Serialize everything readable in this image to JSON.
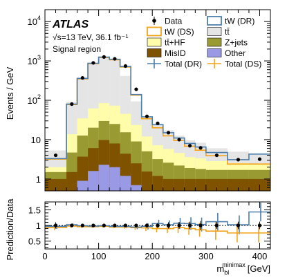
{
  "chart_data": [
    {
      "type": "bar",
      "ylabel": "Events / GeV",
      "info": {
        "experiment": "ATLAS",
        "energy_line": "√s=13 TeV, 36.1 fb⁻¹",
        "region": "Signal region"
      },
      "y_scale": "log",
      "ylim": [
        0.5,
        20000
      ],
      "xlim": [
        0,
        420
      ],
      "x_tick_labels": [
        "0",
        "100",
        "200",
        "300",
        "400"
      ],
      "y_tick_labels": [
        {
          "base": "1",
          "exp": ""
        },
        {
          "base": "10",
          "exp": ""
        },
        {
          "base": "10",
          "exp": "2"
        },
        {
          "base": "10",
          "exp": "3"
        },
        {
          "base": "10",
          "exp": "4"
        }
      ],
      "bin_edges": [
        0,
        40,
        60,
        80,
        100,
        120,
        140,
        160,
        180,
        200,
        220,
        240,
        260,
        280,
        300,
        340,
        380,
        420
      ],
      "stack": [
        {
          "name": "Other",
          "color": "#9999e6",
          "values": [
            0.5,
            0.5,
            0.9,
            1.6,
            2.3,
            2.0,
            1.2,
            0.7,
            0.5,
            0.5,
            0.5,
            0.5,
            0.5,
            0.5,
            0.5,
            0.5,
            0.5
          ]
        },
        {
          "name": "MisID",
          "color": "#7f5200",
          "values": [
            0.5,
            1.0,
            2.8,
            4.5,
            7.5,
            6.0,
            3.2,
            1.8,
            1.05,
            0.7,
            0.5,
            0.5,
            0.5,
            0.5,
            0.5,
            0.5,
            0.5
          ]
        },
        {
          "name": "Z+jets",
          "color": "#9a9a33",
          "values": [
            0.5,
            3.2,
            9.0,
            14.0,
            20.0,
            17.0,
            11.0,
            6.5,
            3.5,
            2.0,
            1.6,
            1.2,
            0.9,
            0.8,
            0.7,
            0.7,
            0.7
          ]
        },
        {
          "name": "tt̄+HF",
          "color": "#fffcaa",
          "values": [
            0.5,
            9.0,
            22.0,
            42.0,
            55.0,
            48.0,
            30.0,
            14.5,
            7.0,
            4.0,
            3.2,
            2.4,
            1.7,
            1.55,
            1.15,
            0.85,
            0.75
          ]
        },
        {
          "name": "tt̄",
          "color": "#e5e5e5",
          "values": [
            3.3,
            77.0,
            330.0,
            840.0,
            1150.0,
            980.0,
            370.0,
            70.0,
            25.0,
            18.0,
            11.5,
            8.0,
            6.0,
            5.0,
            3.2,
            2.4,
            2.0
          ]
        }
      ],
      "legend": [
        {
          "key": "Data",
          "label": "Data",
          "style": "marker"
        },
        {
          "key": "tW (DR)",
          "label": "tW (DR)",
          "style": "box",
          "fill": "#ffffff",
          "stroke": "#4d7eab"
        },
        {
          "key": "tW (DS)",
          "label": "tW (DS)",
          "style": "box",
          "fill": "#ffffff",
          "stroke": "#f2a31a"
        },
        {
          "key": "tt̄",
          "label": "tt̄",
          "style": "box",
          "fill": "#e5e5e5",
          "stroke": "#000000"
        },
        {
          "key": "tt̄+HF",
          "label": "tt̄+HF",
          "style": "box",
          "fill": "#fffcaa",
          "stroke": "#000000"
        },
        {
          "key": "Z+jets",
          "label": "Z+jets",
          "style": "box",
          "fill": "#9a9a33",
          "stroke": "#000000"
        },
        {
          "key": "MisID",
          "label": "MisID",
          "style": "box",
          "fill": "#7f5200",
          "stroke": "#000000"
        },
        {
          "key": "Other",
          "label": "Other",
          "style": "box",
          "fill": "#9999e6",
          "stroke": "#000000"
        },
        {
          "key": "Total (DR)",
          "label": "Total (DR)",
          "style": "cross",
          "stroke": "#4d7eab"
        },
        {
          "key": "Total (DS)",
          "label": "Total (DS)",
          "style": "cross",
          "stroke": "#f2a31a"
        }
      ],
      "total_dr": {
        "color": "#4d7eab",
        "values": [
          3.3,
          80.0,
          360.0,
          870.0,
          1250.0,
          1100.0,
          720.0,
          140.0,
          38.0,
          24.0,
          15.0,
          11.0,
          8.0,
          6.5,
          4.7,
          3.1,
          4.3
        ]
      },
      "total_ds": {
        "color": "#f2a31a",
        "values": [
          3.2,
          78.0,
          350.0,
          850.0,
          1220.0,
          1070.0,
          700.0,
          135.0,
          34.0,
          20.0,
          12.5,
          9.5,
          6.8,
          5.4,
          3.9,
          2.4,
          2.4
        ]
      },
      "data_points": {
        "x": [
          20,
          50,
          70,
          90,
          110,
          130,
          150,
          170,
          190,
          210,
          230,
          250,
          270,
          290,
          320,
          360,
          400
        ],
        "y": [
          4.0,
          80.0,
          370.0,
          890.0,
          1260.0,
          1130.0,
          740.0,
          190.0,
          39.0,
          26.0,
          15.0,
          10.0,
          7.0,
          6.2,
          4.0,
          3.1,
          3.2
        ],
        "yerr": [
          0.45,
          2.0,
          4.3,
          6.7,
          7.9,
          7.5,
          6.1,
          3.1,
          1.4,
          1.1,
          0.86,
          0.7,
          0.59,
          0.56,
          0.32,
          0.28,
          0.28
        ]
      }
    },
    {
      "type": "line",
      "ylabel": "Prediction/Data",
      "xlabel": {
        "base": "m",
        "sub": "bl",
        "sup": "minimax",
        "unit": "[GeV]"
      },
      "xlim": [
        0,
        420
      ],
      "ylim": [
        0.25,
        1.75
      ],
      "x_tick_labels": [
        "0",
        "100",
        "200",
        "300",
        "400"
      ],
      "y_tick_labels": [
        "0.5",
        "1",
        "1.5"
      ],
      "reference_line": 1.0,
      "ratio_dr": {
        "color": "#4d7eab",
        "values": [
          0.97,
          1.02,
          0.99,
          0.98,
          0.99,
          0.97,
          0.97,
          0.95,
          0.97,
          1.06,
          1.02,
          1.07,
          1.06,
          1.03,
          1.12,
          1.02,
          1.43
        ],
        "err": [
          0.08,
          0.05,
          0.04,
          0.04,
          0.04,
          0.04,
          0.05,
          0.07,
          0.1,
          0.12,
          0.14,
          0.17,
          0.2,
          0.22,
          0.28,
          0.3,
          0.3
        ]
      },
      "ratio_ds": {
        "color": "#f2a31a",
        "values": [
          0.93,
          0.98,
          0.96,
          0.96,
          0.97,
          0.95,
          0.95,
          0.93,
          0.92,
          0.9,
          0.9,
          0.93,
          0.9,
          0.86,
          0.82,
          0.76,
          0.76
        ],
        "err": [
          0.08,
          0.05,
          0.04,
          0.04,
          0.04,
          0.04,
          0.05,
          0.07,
          0.1,
          0.12,
          0.14,
          0.17,
          0.2,
          0.22,
          0.28,
          0.3,
          0.3
        ]
      },
      "data_ratio_err": [
        0.1,
        0.03,
        0.02,
        0.02,
        0.02,
        0.02,
        0.02,
        0.04,
        0.07,
        0.08,
        0.1,
        0.11,
        0.12,
        0.14,
        0.11,
        0.12,
        0.12
      ]
    }
  ]
}
